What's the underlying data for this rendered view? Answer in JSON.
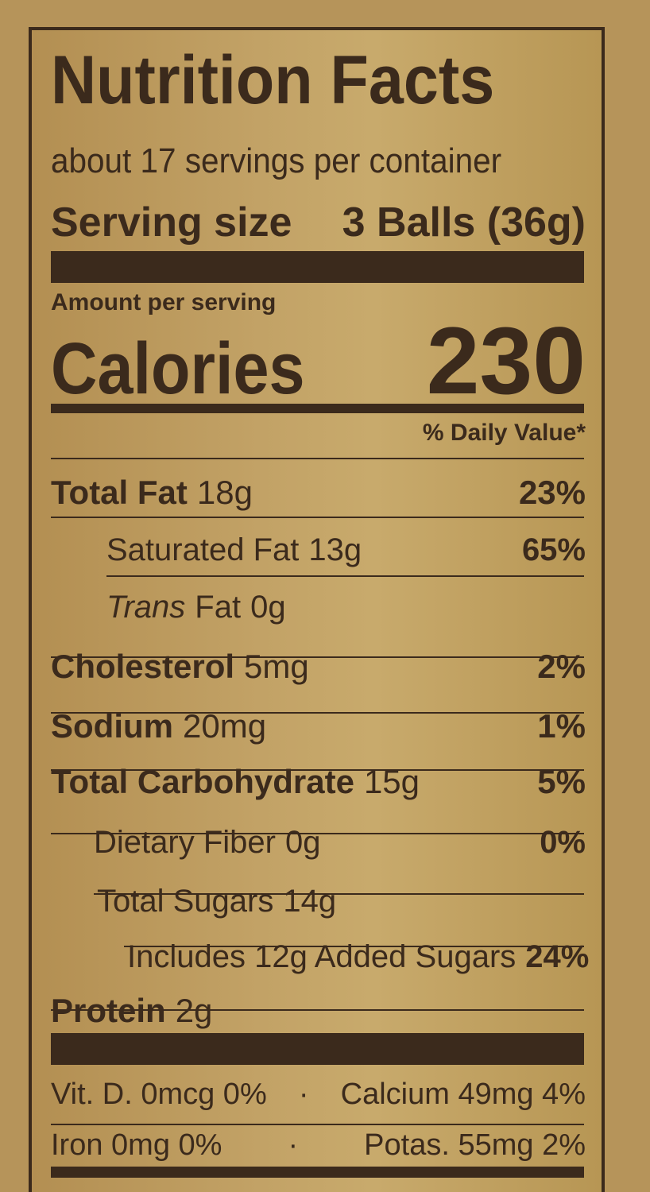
{
  "label": {
    "title": "Nutrition Facts",
    "servings_per_container": "about 17 servings per container",
    "serving_size_label": "Serving size",
    "serving_size_value": "3 Balls (36g)",
    "amount_per_serving": "Amount per serving",
    "calories_label": "Calories",
    "calories_value": "230",
    "daily_value_header": "% Daily Value*",
    "nutrients": [
      {
        "name": "Total Fat",
        "amount": "18g",
        "dv": "23%"
      },
      {
        "name": "Saturated Fat",
        "amount": "13g",
        "dv": "65%"
      },
      {
        "name": "Trans",
        "name_suffix": "Fat",
        "amount": "0g",
        "dv": ""
      },
      {
        "name": "Cholesterol",
        "amount": "5mg",
        "dv": "2%"
      },
      {
        "name": "Sodium",
        "amount": "20mg",
        "dv": "1%"
      },
      {
        "name": "Total Carbohydrate",
        "amount": "15g",
        "dv": "5%"
      },
      {
        "name": "Dietary Fiber",
        "amount": "0g",
        "dv": "0%"
      },
      {
        "name": "Total Sugars",
        "amount": "14g",
        "dv": ""
      },
      {
        "name": "Includes 12g Added Sugars",
        "amount": "",
        "dv": "24%"
      },
      {
        "name": "Protein",
        "amount": "2g",
        "dv": ""
      }
    ],
    "vitamins": [
      {
        "left": "Vit. D. 0mcg 0%",
        "sep": "·",
        "right": "Calcium 49mg 4%"
      },
      {
        "left": "Iron 0mg 0%",
        "sep": "·",
        "right": "Potas. 55mg 2%"
      }
    ]
  },
  "colors": {
    "ink": "#3b2a1c",
    "background": "#b6945a"
  }
}
